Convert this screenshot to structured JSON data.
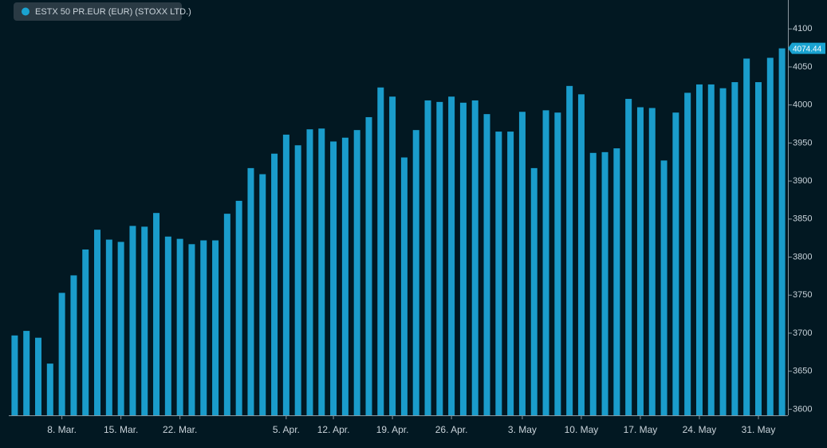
{
  "chart_data": {
    "type": "bar",
    "legend": "ESTX 50 PR.EUR (EUR) (STOXX LTD.)",
    "color": "#1a9ccb",
    "categories": [
      null,
      null,
      null,
      null,
      "8. Mar.",
      null,
      null,
      null,
      null,
      "15. Mar.",
      null,
      null,
      null,
      null,
      "22. Mar.",
      null,
      null,
      null,
      null,
      null,
      null,
      null,
      null,
      "5. Apr.",
      null,
      null,
      null,
      "12. Apr.",
      null,
      null,
      null,
      null,
      "19. Apr.",
      null,
      null,
      null,
      null,
      "26. Apr.",
      null,
      null,
      null,
      null,
      null,
      "3. May",
      null,
      null,
      null,
      null,
      "10. May",
      null,
      null,
      null,
      null,
      "17. May",
      null,
      null,
      null,
      null,
      "24. May",
      null,
      null,
      null,
      null,
      "31. May",
      null,
      null
    ],
    "values": [
      3697,
      3703,
      3694,
      3660,
      3753,
      3776,
      3810,
      3836,
      3823,
      3820,
      3841,
      3840,
      3858,
      3827,
      3824,
      3817,
      3822,
      3822,
      3857,
      3874,
      3917,
      3909,
      3936,
      3961,
      3947,
      3968,
      3969,
      3952,
      3957,
      3967,
      3984,
      4023,
      4011,
      3931,
      3967,
      4006,
      4004,
      4011,
      4003,
      4006,
      3988,
      3965,
      3965,
      3991,
      3917,
      3993,
      3990,
      4025,
      4014,
      3937,
      3938,
      3943,
      4008,
      3997,
      3996,
      3927,
      3990,
      4016,
      4027,
      4027,
      4022,
      4030,
      4061,
      4030,
      4062,
      4074.44
    ],
    "last_value_label": "4074.44",
    "ylim": [
      3592,
      4138
    ],
    "yticks": [
      3600,
      3650,
      3700,
      3750,
      3800,
      3850,
      3900,
      3950,
      4000,
      4050,
      4100
    ]
  }
}
